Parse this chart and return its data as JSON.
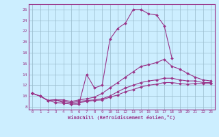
{
  "xlabel": "Windchill (Refroidissement éolien,°C)",
  "background_color": "#cceeff",
  "line_color": "#993388",
  "grid_color": "#99bbcc",
  "xlim": [
    -0.5,
    23.5
  ],
  "ylim": [
    7.5,
    27
  ],
  "yticks": [
    8,
    10,
    12,
    14,
    16,
    18,
    20,
    22,
    24,
    26
  ],
  "xticks": [
    0,
    1,
    2,
    3,
    4,
    5,
    6,
    7,
    8,
    9,
    10,
    11,
    12,
    13,
    14,
    15,
    16,
    17,
    18,
    19,
    20,
    21,
    22,
    23
  ],
  "series": [
    {
      "x": [
        0,
        1,
        2,
        3,
        4,
        5,
        6,
        7,
        8,
        9,
        10,
        11,
        12,
        13,
        14,
        15,
        16,
        17,
        18
      ],
      "y": [
        10.5,
        10.0,
        9.2,
        8.8,
        8.7,
        8.5,
        8.5,
        14.0,
        11.5,
        12.0,
        20.5,
        22.5,
        23.5,
        26.0,
        26.0,
        25.2,
        25.0,
        23.0,
        17.0
      ]
    },
    {
      "x": [
        0,
        1,
        2,
        3,
        4,
        5,
        6,
        7,
        8,
        9,
        10,
        11,
        12,
        13,
        14,
        15,
        16,
        17,
        18,
        19,
        20,
        21,
        22,
        23
      ],
      "y": [
        10.5,
        10.0,
        9.2,
        9.3,
        9.3,
        9.0,
        9.3,
        9.5,
        9.8,
        10.5,
        11.5,
        12.5,
        13.5,
        14.5,
        15.5,
        15.8,
        16.2,
        16.8,
        15.5,
        15.0,
        14.2,
        13.5,
        13.0,
        12.8
      ]
    },
    {
      "x": [
        0,
        1,
        2,
        3,
        4,
        5,
        6,
        7,
        8,
        9,
        10,
        11,
        12,
        13,
        14,
        15,
        16,
        17,
        18,
        19,
        20,
        21,
        22,
        23
      ],
      "y": [
        10.5,
        10.0,
        9.2,
        9.3,
        9.0,
        8.8,
        9.0,
        9.2,
        9.3,
        9.5,
        10.0,
        10.8,
        11.5,
        12.0,
        12.5,
        12.8,
        13.0,
        13.3,
        13.3,
        13.0,
        12.8,
        12.8,
        12.5,
        12.5
      ]
    },
    {
      "x": [
        0,
        1,
        2,
        3,
        4,
        5,
        6,
        7,
        8,
        9,
        10,
        11,
        12,
        13,
        14,
        15,
        16,
        17,
        18,
        19,
        20,
        21,
        22,
        23
      ],
      "y": [
        10.5,
        10.0,
        9.2,
        9.3,
        8.8,
        8.5,
        8.8,
        9.0,
        9.2,
        9.3,
        9.8,
        10.2,
        10.8,
        11.2,
        11.7,
        12.0,
        12.2,
        12.5,
        12.5,
        12.3,
        12.2,
        12.3,
        12.3,
        12.3
      ]
    }
  ]
}
